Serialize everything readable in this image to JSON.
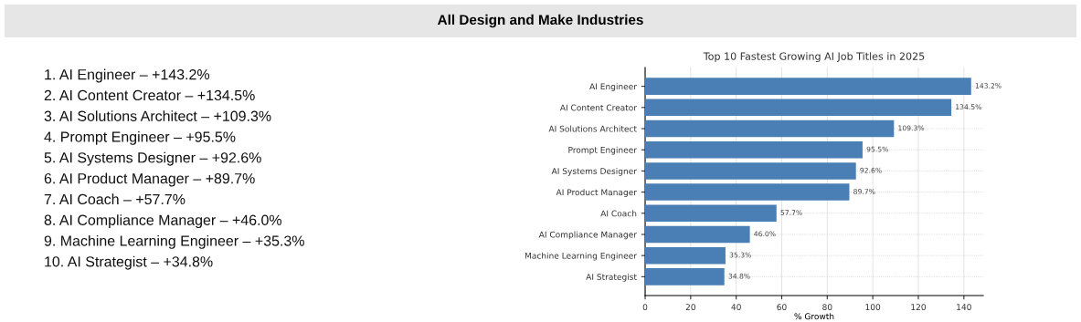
{
  "chart_data": {
    "type": "bar",
    "orientation": "horizontal",
    "title": "All Design and Make Industries",
    "subtitle": "Top 10 Fastest Growing AI Job Titles in 2025",
    "xlabel": "% Growth",
    "categories": [
      "AI Engineer",
      "AI Content Creator",
      "AI Solutions Architect",
      "Prompt Engineer",
      "AI Systems Designer",
      "AI Product Manager",
      "AI Coach",
      "AI Compliance Manager",
      "Machine Learning Engineer",
      "AI Strategist"
    ],
    "values": [
      143.2,
      134.5,
      109.3,
      95.5,
      92.6,
      89.7,
      57.7,
      46.0,
      35.3,
      34.8
    ],
    "value_labels": [
      "143.2%",
      "134.5%",
      "109.3%",
      "95.5%",
      "92.6%",
      "89.7%",
      "57.7%",
      "46.0%",
      "35.3%",
      "34.8%"
    ],
    "color": "#4a7fb5",
    "xlim": [
      0,
      148.5
    ],
    "xticks": [
      0,
      20,
      40,
      60,
      80,
      100,
      120,
      140
    ],
    "grid": true,
    "annotations": [
      "1. AI Engineer – +143.2%",
      "2. AI Content Creator – +134.5%",
      "3. AI Solutions Architect – +109.3%",
      "4. Prompt Engineer – +95.5%",
      "5. AI Systems Designer – +92.6%",
      "6. AI Product Manager – +89.7%",
      "7. AI Coach – +57.7%",
      "8. AI Compliance Manager – +46.0%",
      "9. Machine Learning Engineer – +35.3%",
      "10. AI Strategist – +34.8%"
    ]
  }
}
